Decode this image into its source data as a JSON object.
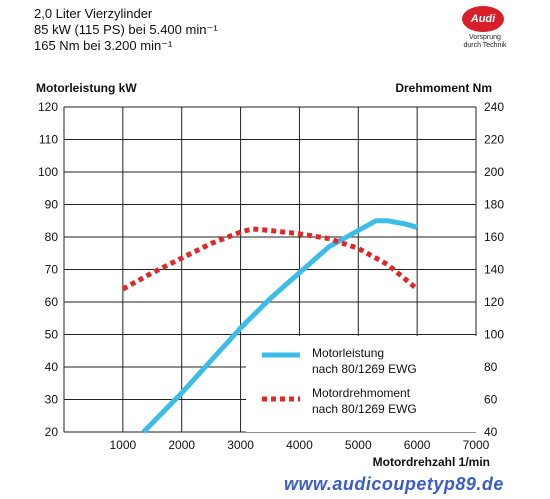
{
  "header": {
    "line1": "2,0 Liter Vierzylinder",
    "line2": "85 kW (115 PS) bei 5.400 min⁻¹",
    "line3": "165 Nm bei 3.200 min⁻¹"
  },
  "logo": {
    "brand": "Audi",
    "slogan_line1": "Vorsprung",
    "slogan_line2": "durch Technik"
  },
  "watermark": "www.audicoupetyp89.de",
  "colors": {
    "power": "#3bbde8",
    "torque": "#e02828"
  },
  "chart_data": {
    "type": "line",
    "xlabel": "Motordrehzahl 1/min",
    "ylabel_left": "Motorleistung kW",
    "ylabel_right": "Drehmoment Nm",
    "xlim": [
      0,
      7000
    ],
    "ylim_left": [
      20,
      120
    ],
    "ylim_right": [
      40,
      240
    ],
    "x_ticks": [
      1000,
      2000,
      3000,
      4000,
      5000,
      6000,
      7000
    ],
    "y_ticks_left": [
      20,
      30,
      40,
      50,
      60,
      70,
      80,
      90,
      100,
      110,
      120
    ],
    "y_ticks_right": [
      40,
      60,
      80,
      100,
      120,
      140,
      160,
      180,
      200,
      220,
      240
    ],
    "grid": true,
    "series": [
      {
        "name": "Motorleistung nach 80/1269 EWG",
        "axis": "left",
        "style": "solid",
        "x": [
          1350,
          2000,
          2500,
          3000,
          3500,
          4000,
          4500,
          5000,
          5300,
          5500,
          5800,
          6000
        ],
        "y": [
          20,
          32,
          42,
          52,
          61,
          69,
          77,
          82,
          85,
          85,
          84,
          83
        ]
      },
      {
        "name": "Motordrehmoment nach 80/1269 EWG",
        "axis": "right",
        "style": "dotted",
        "x": [
          1000,
          1500,
          2000,
          2500,
          3000,
          3200,
          3500,
          4000,
          4500,
          5000,
          5500,
          6000
        ],
        "y": [
          128,
          138,
          147,
          156,
          163,
          165,
          164,
          162,
          159,
          153,
          143,
          128
        ]
      }
    ]
  }
}
